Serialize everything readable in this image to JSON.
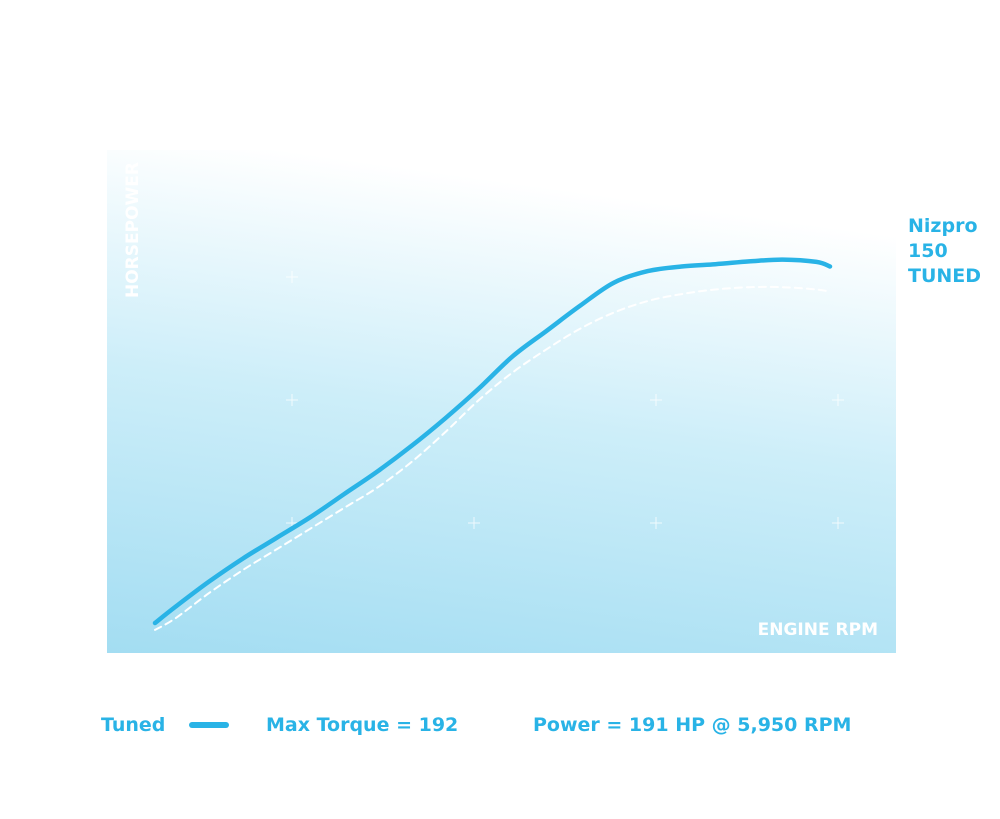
{
  "chart_data": {
    "type": "line",
    "title": "",
    "xlabel": "ENGINE RPM",
    "ylabel": "HORSEPOWER",
    "grid": false,
    "series": [
      {
        "name": "Tuned",
        "style": "solid",
        "color": "#29b3e6",
        "x": [
          0,
          3,
          8,
          13,
          18,
          23,
          28,
          33,
          38,
          43,
          48,
          53,
          58,
          63,
          68,
          73,
          78,
          83,
          88,
          93,
          98,
          100
        ],
        "y": [
          0,
          3.5,
          9,
          14,
          18.5,
          23,
          28,
          33,
          38.5,
          44.5,
          51,
          58,
          63.5,
          69,
          74,
          76.5,
          77.5,
          78,
          78.6,
          79,
          78.5,
          77.5
        ]
      },
      {
        "name": "",
        "style": "dashed",
        "color": "#ffffff",
        "x": [
          0,
          3,
          8,
          13,
          18,
          23,
          28,
          33,
          38,
          43,
          48,
          53,
          58,
          63,
          68,
          73,
          78,
          83,
          88,
          93,
          98,
          100
        ],
        "y": [
          -1.5,
          1,
          6.5,
          11.5,
          16,
          20.5,
          25,
          29.5,
          35,
          41.5,
          48.5,
          54.5,
          59.5,
          64,
          67.5,
          70,
          71.5,
          72.5,
          73,
          73,
          72.5,
          72
        ]
      }
    ]
  },
  "series_label": {
    "line1": "Nizpro",
    "line2": "150",
    "line3": "TUNED"
  },
  "legend": {
    "series_name": "Tuned",
    "max_torque": "Max Torque = 192",
    "power": "Power = 191 HP @ 5,950 RPM"
  },
  "colors": {
    "accent": "#29b3e6",
    "fill_bottom": "#a8dff3",
    "fill_top": "#ffffff"
  }
}
